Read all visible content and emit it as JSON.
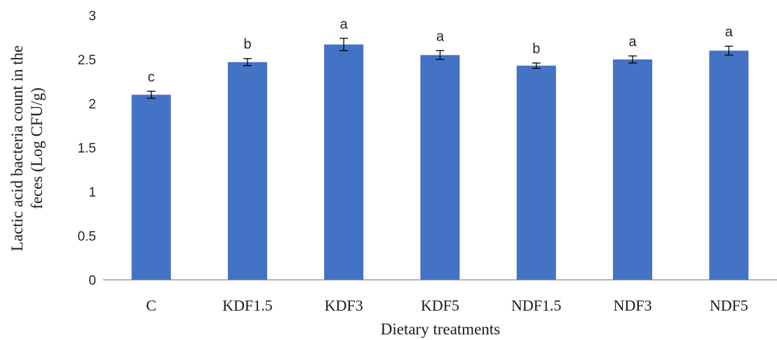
{
  "chart_data": {
    "type": "bar",
    "categories": [
      "C",
      "KDF1.5",
      "KDF3",
      "KDF5",
      "NDF1.5",
      "NDF3",
      "NDF5"
    ],
    "values": [
      2.1,
      2.47,
      2.67,
      2.55,
      2.43,
      2.5,
      2.6
    ],
    "errors": [
      0.04,
      0.04,
      0.07,
      0.05,
      0.03,
      0.04,
      0.05
    ],
    "significance_letters": [
      "c",
      "b",
      "a",
      "a",
      "b",
      "a",
      "a"
    ],
    "title": "",
    "xlabel": "Dietary treatments",
    "ylabel_lines": [
      "Lactic acid bacteria count in the",
      "feces (Log CFU/g)"
    ],
    "ylim": [
      0,
      3
    ],
    "yticks": [
      0,
      0.5,
      1,
      1.5,
      2,
      2.5,
      3
    ],
    "ytick_labels": [
      "0",
      "0.5",
      "1",
      "1.5",
      "2",
      "2.5",
      "3"
    ],
    "bar_color": "#4472c4",
    "error_bar_color": "#000000",
    "grid": false,
    "legend": "none"
  }
}
